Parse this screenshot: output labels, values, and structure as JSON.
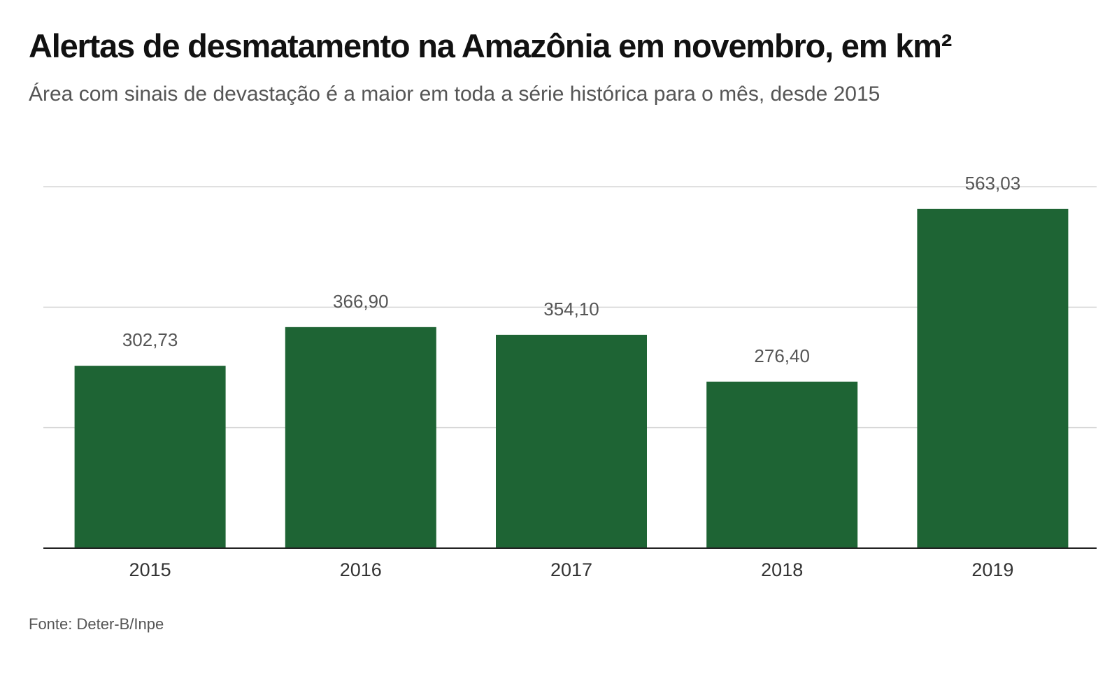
{
  "header": {
    "title": "Alertas de desmatamento na Amazônia em novembro, em km²",
    "subtitle": "Área com sinais de devastação é a maior em toda a série histórica para o mês, desde 2015"
  },
  "footer": {
    "source": "Fonte: Deter-B/Inpe"
  },
  "colors": {
    "bar": "#1e6434",
    "grid": "#d6d6d6",
    "axis": "#222222"
  },
  "chart_data": {
    "type": "bar",
    "title": "Alertas de desmatamento na Amazônia em novembro, em km²",
    "subtitle": "Área com sinais de devastação é a maior em toda a série histórica para o mês, desde 2015",
    "xlabel": "",
    "ylabel": "",
    "categories": [
      "2015",
      "2016",
      "2017",
      "2018",
      "2019"
    ],
    "values": [
      302.73,
      366.9,
      354.1,
      276.4,
      563.03
    ],
    "value_labels": [
      "302,73",
      "366,90",
      "354,10",
      "276,40",
      "563,03"
    ],
    "ylim": [
      0,
      600
    ],
    "gridlines": [
      200,
      400,
      600
    ],
    "grid": true,
    "legend": "none"
  }
}
